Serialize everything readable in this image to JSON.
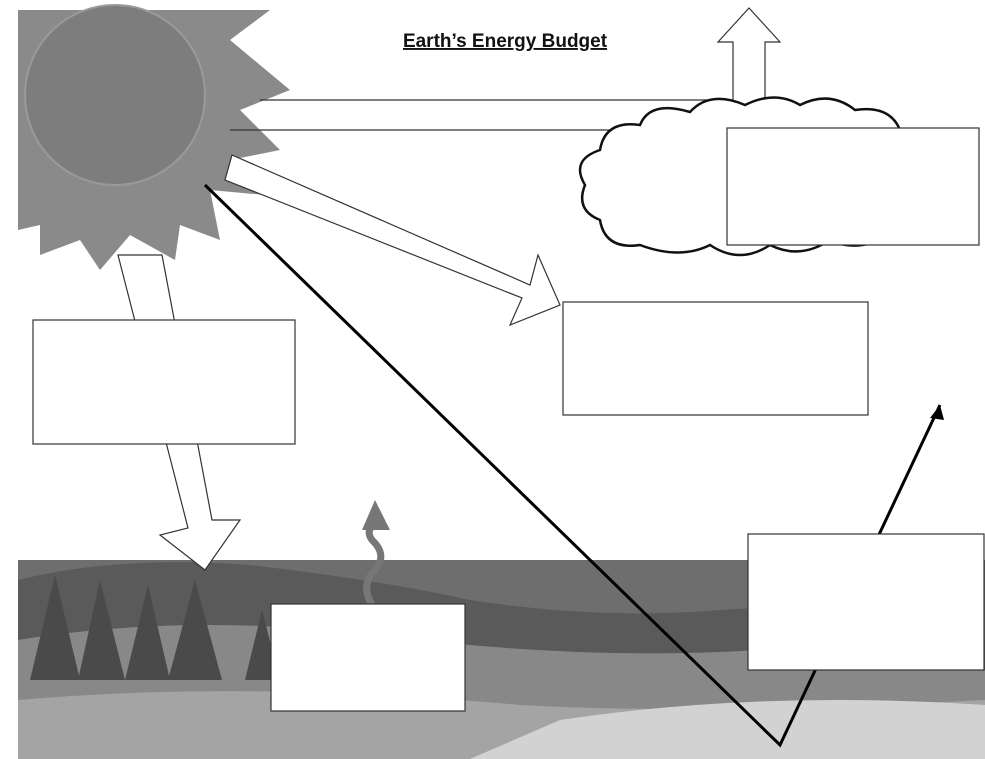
{
  "title": "Earth’s Energy Budget"
}
